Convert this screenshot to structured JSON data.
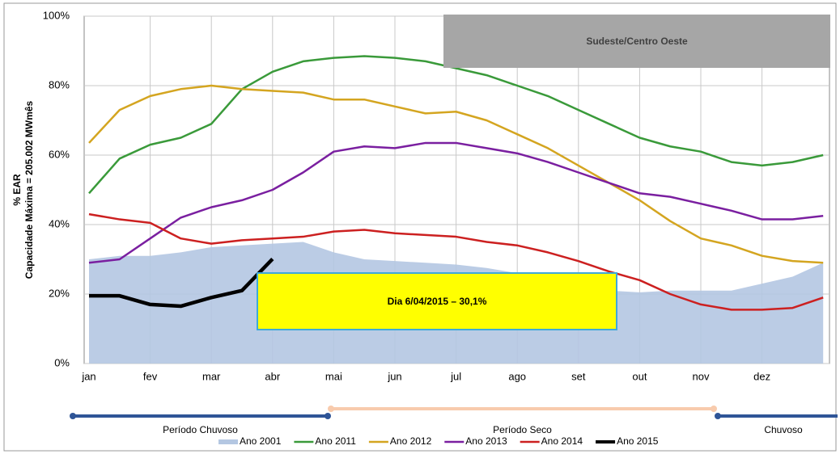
{
  "chart_data": {
    "type": "line",
    "title": "Sudeste/Centro Oeste",
    "annotation": "Dia 6/04/2015 – 30,1%",
    "y_label": "% EAR",
    "y_sublabel": "Capacidade Máxima = 205.002 MWmês",
    "categories": [
      "jan",
      null,
      "fev",
      null,
      "mar",
      null,
      "abr",
      null,
      "mai",
      null,
      "jun",
      null,
      "jul",
      null,
      "ago",
      null,
      "set",
      null,
      "out",
      null,
      "nov",
      null,
      "dez",
      null,
      null
    ],
    "ylim": [
      0,
      100
    ],
    "yticks": [
      {
        "value": 0,
        "label": "0%"
      },
      {
        "value": 20,
        "label": "20%"
      },
      {
        "value": 40,
        "label": "40%"
      },
      {
        "value": 60,
        "label": "60%"
      },
      {
        "value": 80,
        "label": "80%"
      },
      {
        "value": 100,
        "label": "100%"
      }
    ],
    "grid": true,
    "legend": "bottom",
    "series": [
      {
        "name": "Ano 2001",
        "color": "#b4c7e2",
        "kind": "area",
        "values": [
          30,
          31,
          31,
          32,
          33.5,
          34,
          34.5,
          35,
          32,
          30,
          29.5,
          29,
          28.5,
          27.5,
          26,
          24,
          22.5,
          21,
          20.5,
          21,
          21,
          21,
          23,
          25,
          29
        ]
      },
      {
        "name": "Ano 2011",
        "color": "#3a9a3a",
        "kind": "line",
        "values": [
          49,
          59,
          63,
          65,
          69,
          79,
          84,
          87,
          88,
          88.5,
          88,
          87,
          85,
          83,
          80,
          77,
          73,
          69,
          65,
          62.5,
          61,
          58,
          57,
          58,
          60
        ]
      },
      {
        "name": "Ano 2012",
        "color": "#d4a520",
        "kind": "line",
        "values": [
          63.5,
          73,
          77,
          79,
          80,
          79,
          78.5,
          78,
          76,
          76,
          74,
          72,
          72.5,
          70,
          66,
          62,
          57,
          52,
          47,
          41,
          36,
          34,
          31,
          29.5,
          29
        ]
      },
      {
        "name": "Ano 2013",
        "color": "#7a1fa0",
        "kind": "line",
        "values": [
          29,
          30,
          36,
          42,
          45,
          47,
          50,
          55,
          61,
          62.5,
          62,
          63.5,
          63.5,
          62,
          60.5,
          58,
          55,
          52,
          49,
          48,
          46,
          44,
          41.5,
          41.5,
          42.5
        ]
      },
      {
        "name": "Ano 2014",
        "color": "#cc2020",
        "kind": "line",
        "values": [
          43,
          41.5,
          40.5,
          36,
          34.5,
          35.5,
          36,
          36.5,
          38,
          38.5,
          37.5,
          37,
          36.5,
          35,
          34,
          32,
          29.5,
          26.5,
          24,
          20,
          17,
          15.5,
          15.5,
          16,
          19
        ]
      },
      {
        "name": "Ano 2015",
        "color": "#000000",
        "kind": "bold",
        "values": [
          19.5,
          19.5,
          17,
          16.5,
          19,
          21,
          30.1,
          null,
          null,
          null,
          null,
          null,
          null,
          null,
          null,
          null,
          null,
          null,
          null,
          null,
          null,
          null,
          null,
          null,
          null
        ]
      }
    ],
    "periods": [
      {
        "label": "Período Chuvoso",
        "color": "#2f5597"
      },
      {
        "label": "Período Seco",
        "color": "#f8cbad"
      },
      {
        "label": "Chuvoso",
        "color": "#2f5597"
      }
    ]
  }
}
